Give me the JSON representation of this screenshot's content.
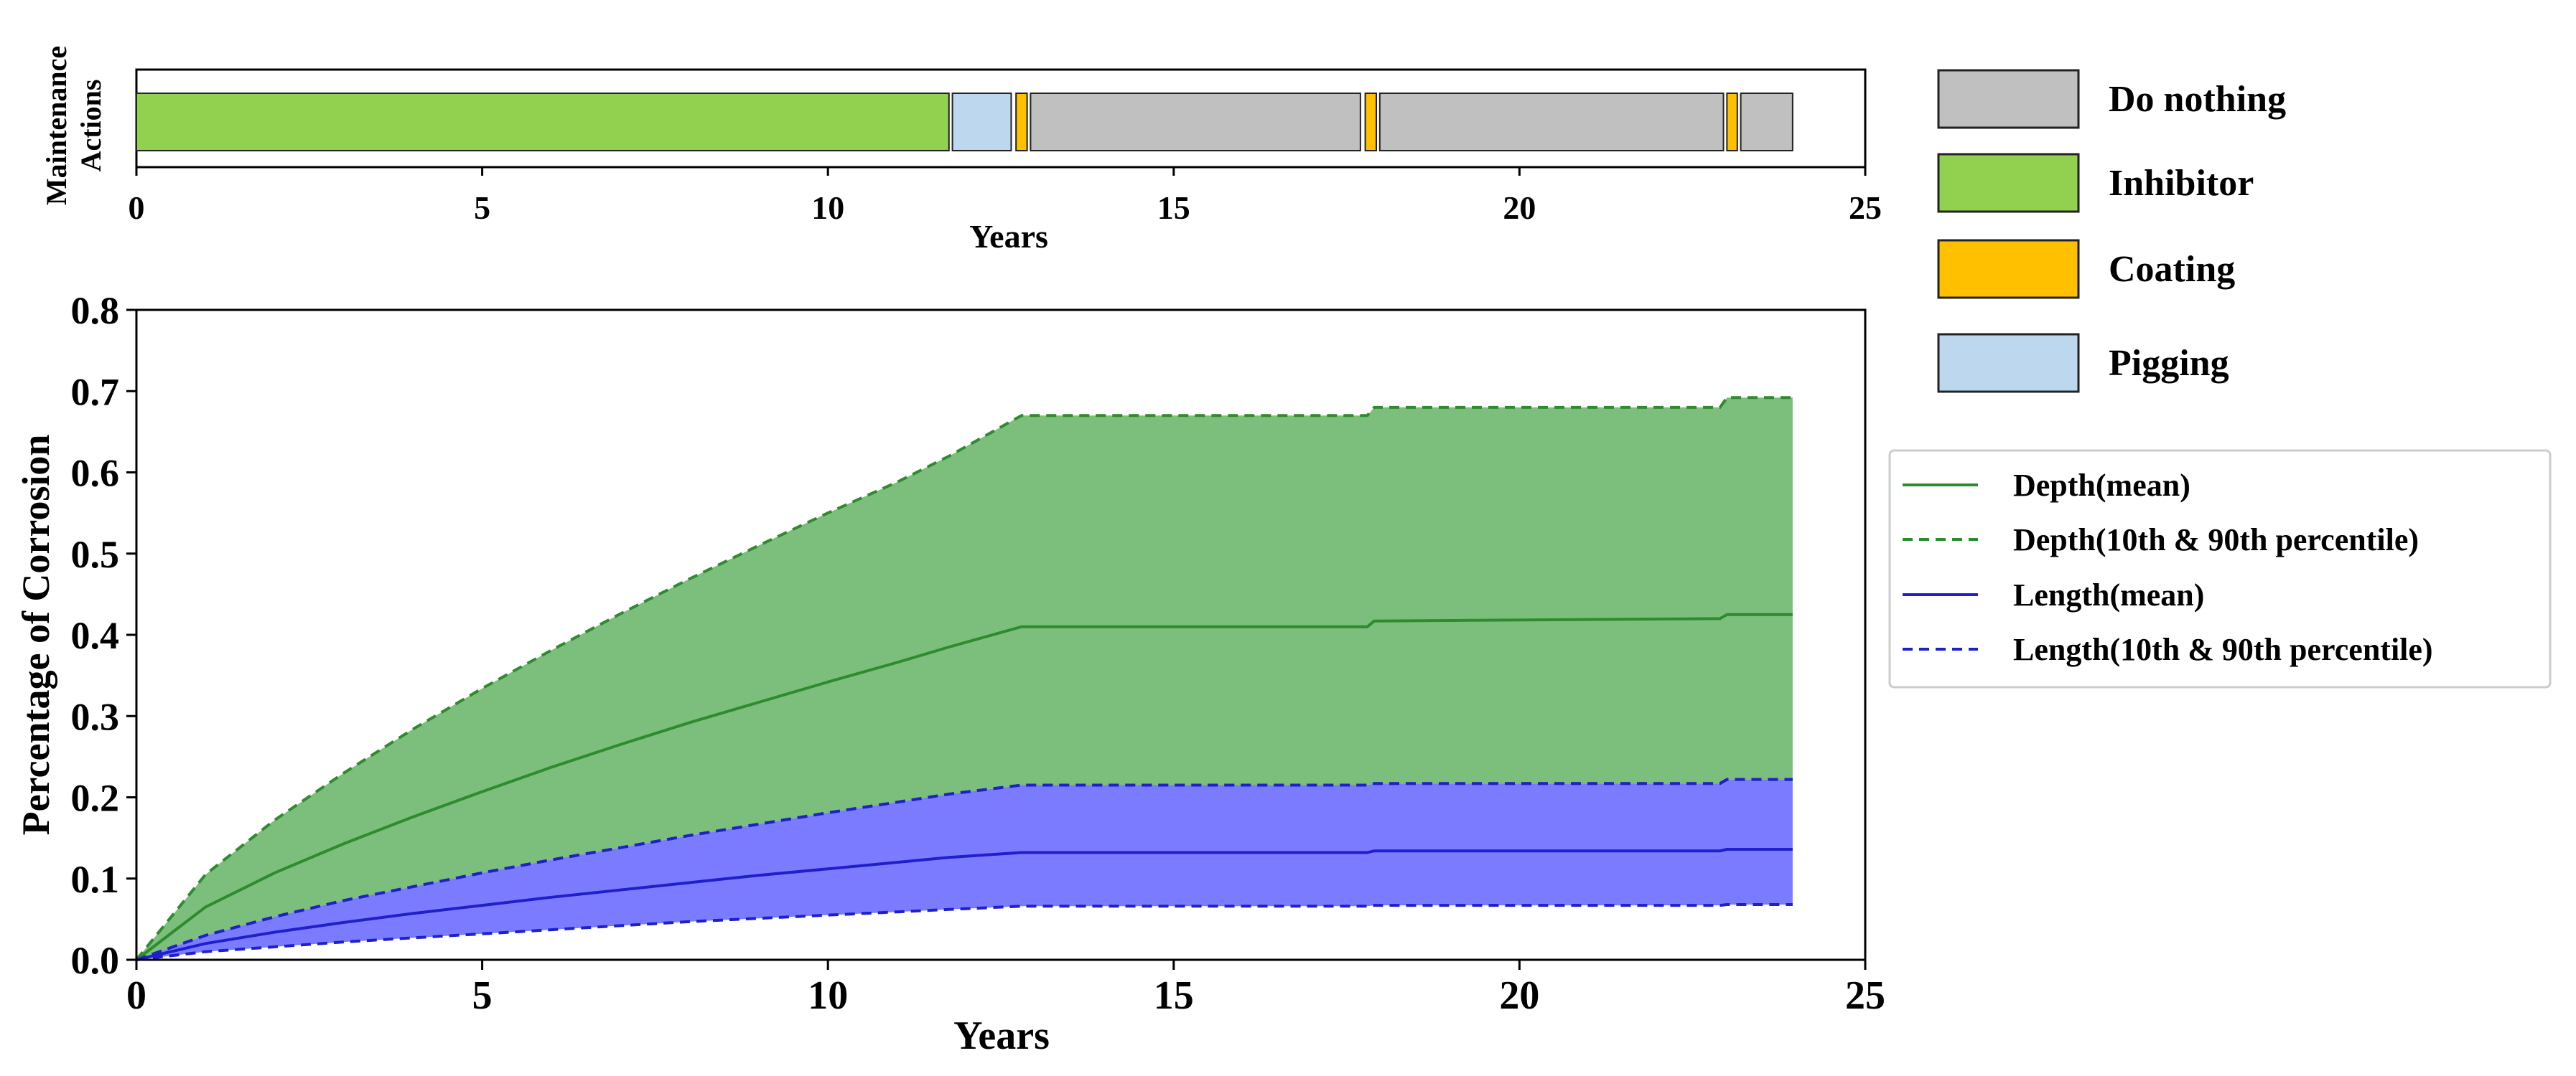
{
  "chart_data": [
    {
      "type": "timeline",
      "ylabel_lines": [
        "Maintenance",
        "Actions"
      ],
      "xlabel": "Years",
      "xlim": [
        0,
        25
      ],
      "xticks": [
        0,
        5,
        10,
        15,
        20,
        25
      ],
      "segments": [
        {
          "action": "Inhibitor",
          "start": 0,
          "end": 11.75
        },
        {
          "action": "Pigging",
          "start": 11.8,
          "end": 12.65
        },
        {
          "action": "Coating",
          "start": 12.72,
          "end": 12.88
        },
        {
          "action": "Do nothing",
          "start": 12.93,
          "end": 17.7
        },
        {
          "action": "Coating",
          "start": 17.77,
          "end": 17.93
        },
        {
          "action": "Do nothing",
          "start": 17.98,
          "end": 22.95
        },
        {
          "action": "Coating",
          "start": 23.0,
          "end": 23.15
        },
        {
          "action": "Do nothing",
          "start": 23.2,
          "end": 23.95
        }
      ],
      "legend": [
        {
          "label": "Do nothing",
          "color": "#c0c0c0"
        },
        {
          "label": "Inhibitor",
          "color": "#92d050"
        },
        {
          "label": "Coating",
          "color": "#ffc000"
        },
        {
          "label": "Pigging",
          "color": "#bdd7ee"
        }
      ]
    },
    {
      "type": "area",
      "xlabel": "Years",
      "ylabel": "Percentage of Corrosion",
      "xlim": [
        0,
        25
      ],
      "ylim": [
        0,
        0.8
      ],
      "xticks": [
        0,
        5,
        10,
        15,
        20,
        25
      ],
      "yticks": [
        "0.0",
        "0.1",
        "0.2",
        "0.3",
        "0.4",
        "0.5",
        "0.6",
        "0.7",
        "0.8"
      ],
      "legend_position": "right",
      "series": [
        {
          "name": "Depth(mean)",
          "color": "#2e8b2e",
          "style": "solid",
          "x": [
            0,
            1,
            2,
            3,
            4,
            5,
            6,
            7,
            8,
            9,
            10,
            11,
            11.75,
            12.8,
            17.8,
            17.9,
            22.9,
            23.0,
            23.95
          ],
          "y": [
            0,
            0.065,
            0.107,
            0.143,
            0.176,
            0.207,
            0.237,
            0.265,
            0.292,
            0.317,
            0.342,
            0.366,
            0.385,
            0.41,
            0.41,
            0.417,
            0.42,
            0.425,
            0.425
          ]
        },
        {
          "name": "Depth(10th & 90th percentile)",
          "color": "#2e8b2e",
          "style": "dashed",
          "x": [
            0,
            1,
            2,
            3,
            4,
            5,
            6,
            7,
            8,
            9,
            10,
            11,
            11.75,
            12.8,
            17.8,
            17.9,
            22.9,
            23.0,
            23.95
          ],
          "upper": [
            0,
            0.105,
            0.172,
            0.23,
            0.284,
            0.334,
            0.381,
            0.426,
            0.469,
            0.51,
            0.55,
            0.588,
            0.62,
            0.67,
            0.67,
            0.68,
            0.68,
            0.692,
            0.692
          ],
          "lower": [
            0,
            0.03,
            0.053,
            0.073,
            0.09,
            0.107,
            0.123,
            0.138,
            0.153,
            0.167,
            0.181,
            0.194,
            0.204,
            0.215,
            0.215,
            0.217,
            0.217,
            0.222,
            0.222
          ]
        },
        {
          "name": "Length(mean)",
          "color": "#1f1fcc",
          "style": "solid",
          "x": [
            0,
            1,
            2,
            3,
            4,
            5,
            6,
            7,
            8,
            9,
            10,
            11,
            11.75,
            12.8,
            17.8,
            17.9,
            22.9,
            23.0,
            23.95
          ],
          "y": [
            0,
            0.02,
            0.034,
            0.046,
            0.057,
            0.067,
            0.077,
            0.086,
            0.095,
            0.104,
            0.112,
            0.12,
            0.126,
            0.132,
            0.132,
            0.134,
            0.134,
            0.136,
            0.136
          ]
        },
        {
          "name": "Length(10th & 90th percentile)",
          "color": "#1f1fcc",
          "style": "dashed",
          "x": [
            0,
            1,
            2,
            3,
            4,
            5,
            6,
            7,
            8,
            9,
            10,
            11,
            11.75,
            12.8,
            17.8,
            17.9,
            22.9,
            23.0,
            23.95
          ],
          "upper": [
            0,
            0.03,
            0.053,
            0.073,
            0.09,
            0.107,
            0.123,
            0.138,
            0.153,
            0.167,
            0.181,
            0.194,
            0.204,
            0.215,
            0.215,
            0.217,
            0.217,
            0.222,
            0.222
          ],
          "lower": [
            0,
            0.01,
            0.016,
            0.022,
            0.027,
            0.032,
            0.037,
            0.042,
            0.047,
            0.051,
            0.055,
            0.059,
            0.062,
            0.066,
            0.066,
            0.067,
            0.067,
            0.068,
            0.068
          ]
        }
      ],
      "fills": [
        {
          "between": "Depth(10th & 90th percentile)",
          "color": "#7cbf7c"
        },
        {
          "between": "Length(10th & 90th percentile)",
          "color": "#7b7bff"
        }
      ]
    }
  ]
}
